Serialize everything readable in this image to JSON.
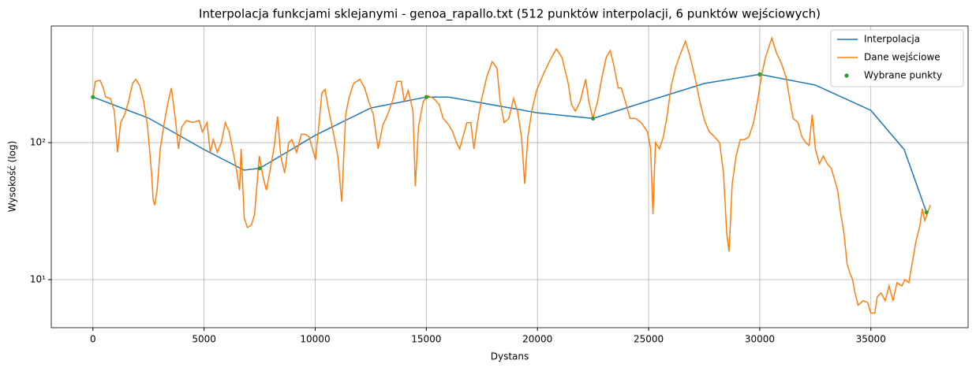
{
  "chart_data": {
    "type": "line",
    "title": "Interpolacja funkcjami sklejanymi - genoa_rapallo.txt (512 punktów interpolacji, 6 punktów wejściowych)",
    "x_label": "Dystans",
    "y_label": "Wysokość (log)",
    "xlim": [
      -1875,
      39375
    ],
    "xticks": [
      0,
      5000,
      10000,
      15000,
      20000,
      25000,
      30000,
      35000
    ],
    "ylim": [
      4.46,
      710
    ],
    "ylog": true,
    "yticks": [
      {
        "value": 10,
        "label": "10¹"
      },
      {
        "value": 100,
        "label": "10²"
      }
    ],
    "grid": true,
    "legend": "upper right",
    "series": [
      {
        "name": "Interpolacja",
        "color": "#1f77b4",
        "style": "line",
        "x": [
          0,
          2500,
          5000,
          6800,
          7500,
          10000,
          12500,
          15000,
          16000,
          20000,
          22500,
          25000,
          27500,
          30000,
          32500,
          35000,
          36500,
          37500
        ],
        "values": [
          215,
          151,
          89,
          63,
          65,
          113,
          179,
          215,
          215,
          165,
          150,
          202,
          270,
          315,
          263,
          172,
          89,
          31
        ]
      },
      {
        "name": "Dane wejściowe",
        "color": "#ff7f0e",
        "style": "line",
        "x": [
          0,
          107,
          321,
          463,
          570,
          784,
          962,
          1105,
          1247,
          1426,
          1604,
          1782,
          1925,
          2103,
          2281,
          2459,
          2637,
          2709,
          2780,
          2887,
          3029,
          3208,
          3386,
          3528,
          3707,
          3849,
          3992,
          4206,
          4491,
          4776,
          4918,
          5132,
          5275,
          5417,
          5596,
          5774,
          5952,
          6130,
          6309,
          6451,
          6594,
          6665,
          6808,
          6950,
          7128,
          7271,
          7485,
          7663,
          7806,
          7948,
          8162,
          8305,
          8447,
          8625,
          8804,
          8946,
          9160,
          9374,
          9552,
          9730,
          10015,
          10157,
          10300,
          10443,
          10585,
          10763,
          11013,
          11191,
          11369,
          11512,
          11726,
          12011,
          12225,
          12403,
          12617,
          12830,
          13044,
          13258,
          13472,
          13686,
          13864,
          14007,
          14185,
          14399,
          14505,
          14648,
          14862,
          15076,
          15325,
          15575,
          15753,
          16002,
          16180,
          16359,
          16501,
          16644,
          16822,
          17000,
          17143,
          17285,
          17464,
          17713,
          17963,
          18176,
          18319,
          18497,
          18711,
          18925,
          19103,
          19281,
          19424,
          19567,
          19745,
          19958,
          20279,
          20564,
          20849,
          21099,
          21384,
          21527,
          21705,
          21919,
          22168,
          22311,
          22489,
          22703,
          22881,
          23095,
          23273,
          23416,
          23630,
          23772,
          23951,
          24164,
          24414,
          24663,
          24948,
          25091,
          25198,
          25305,
          25483,
          25661,
          25839,
          26017,
          26231,
          26445,
          26659,
          26873,
          27086,
          27300,
          27514,
          27728,
          27977,
          28191,
          28369,
          28512,
          28619,
          28762,
          28940,
          29118,
          29297,
          29510,
          29724,
          29902,
          30080,
          30258,
          30543,
          30757,
          30971,
          31185,
          31363,
          31506,
          31720,
          31898,
          32076,
          32218,
          32361,
          32504,
          32682,
          32860,
          33038,
          33216,
          33395,
          33502,
          33644,
          33787,
          33929,
          34071,
          34178,
          34285,
          34428,
          34642,
          34856,
          34998,
          35176,
          35284,
          35462,
          35640,
          35818,
          35996,
          36175,
          36389,
          36531,
          36709,
          36852,
          37030,
          37208,
          37315,
          37422,
          37565,
          37672
        ],
        "values": [
          215,
          280,
          285,
          250,
          215,
          210,
          170,
          85,
          140,
          160,
          200,
          270,
          290,
          260,
          200,
          130,
          60,
          38,
          35,
          45,
          90,
          140,
          200,
          250,
          150,
          90,
          130,
          145,
          140,
          145,
          120,
          140,
          85,
          105,
          85,
          100,
          140,
          120,
          85,
          65,
          45,
          90,
          28,
          24,
          25,
          30,
          80,
          55,
          45,
          60,
          95,
          155,
          80,
          60,
          100,
          105,
          85,
          115,
          115,
          110,
          75,
          130,
          230,
          245,
          180,
          130,
          80,
          37,
          160,
          210,
          270,
          290,
          250,
          200,
          160,
          90,
          135,
          160,
          200,
          280,
          280,
          200,
          240,
          170,
          48,
          130,
          200,
          220,
          210,
          190,
          150,
          135,
          120,
          100,
          90,
          110,
          140,
          140,
          90,
          135,
          200,
          300,
          390,
          350,
          200,
          140,
          150,
          210,
          170,
          110,
          50,
          110,
          170,
          240,
          320,
          400,
          483,
          420,
          270,
          190,
          170,
          200,
          290,
          200,
          150,
          200,
          290,
          420,
          470,
          380,
          250,
          250,
          200,
          150,
          150,
          140,
          120,
          90,
          30,
          100,
          90,
          110,
          160,
          260,
          360,
          450,
          550,
          420,
          300,
          200,
          145,
          120,
          110,
          100,
          60,
          22,
          16,
          50,
          80,
          105,
          105,
          110,
          140,
          200,
          310,
          420,
          580,
          450,
          380,
          300,
          200,
          150,
          140,
          110,
          100,
          95,
          160,
          90,
          70,
          80,
          70,
          65,
          52,
          45,
          30,
          22,
          13,
          11,
          10,
          8,
          6.5,
          7,
          6.8,
          5.7,
          5.7,
          7.5,
          8,
          7,
          9,
          7,
          9.5,
          9,
          10,
          9.5,
          13,
          19,
          25,
          33,
          27,
          31,
          35
        ]
      },
      {
        "name": "Wybrane punkty",
        "color": "#2ca02c",
        "style": "marker",
        "x": [
          0,
          7500,
          15000,
          22500,
          30000,
          37500
        ],
        "values": [
          215,
          65,
          215,
          150,
          315,
          31
        ]
      }
    ]
  }
}
